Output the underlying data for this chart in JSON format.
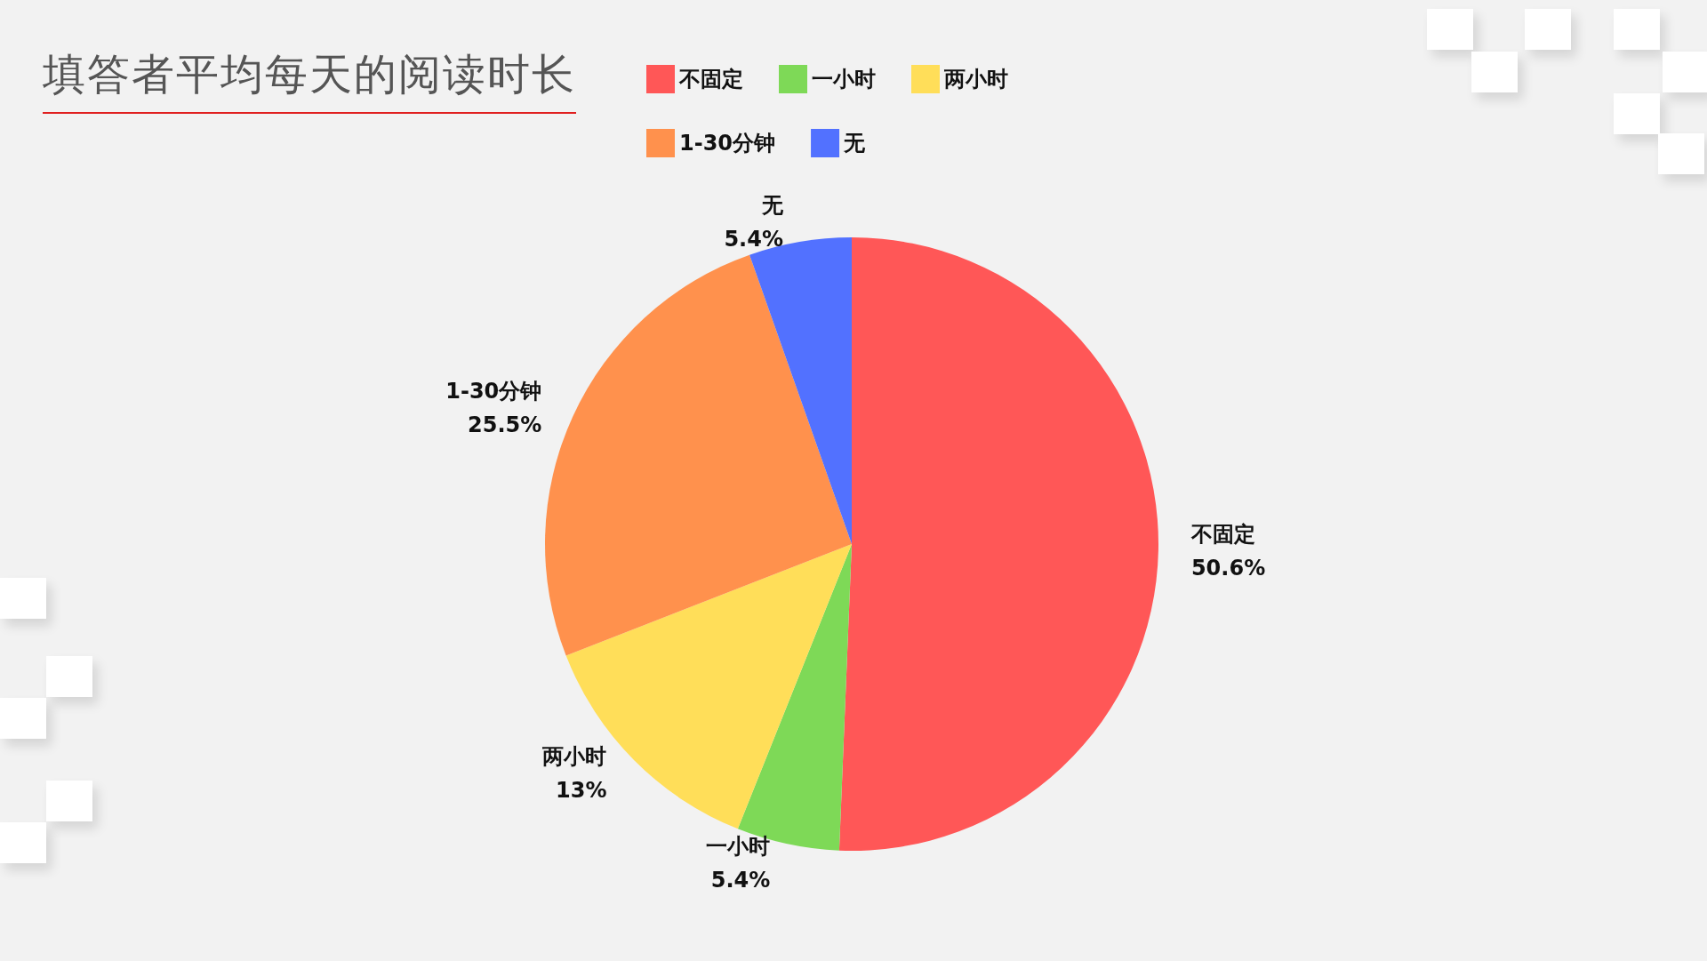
{
  "chart_data": {
    "type": "pie",
    "title": "填答者平均每天的阅读时长",
    "categories": [
      "不固定",
      "一小时",
      "两小时",
      "1-30分钟",
      "无"
    ],
    "values": [
      50.6,
      5.4,
      13,
      25.5,
      5.4
    ],
    "colors": [
      "#ff5757",
      "#7ed957",
      "#ffde59",
      "#ff914d",
      "#5271ff"
    ],
    "value_labels": [
      "50.6%",
      "5.4%",
      "13%",
      "25.5%",
      "5.4%"
    ],
    "legend": "top"
  }
}
